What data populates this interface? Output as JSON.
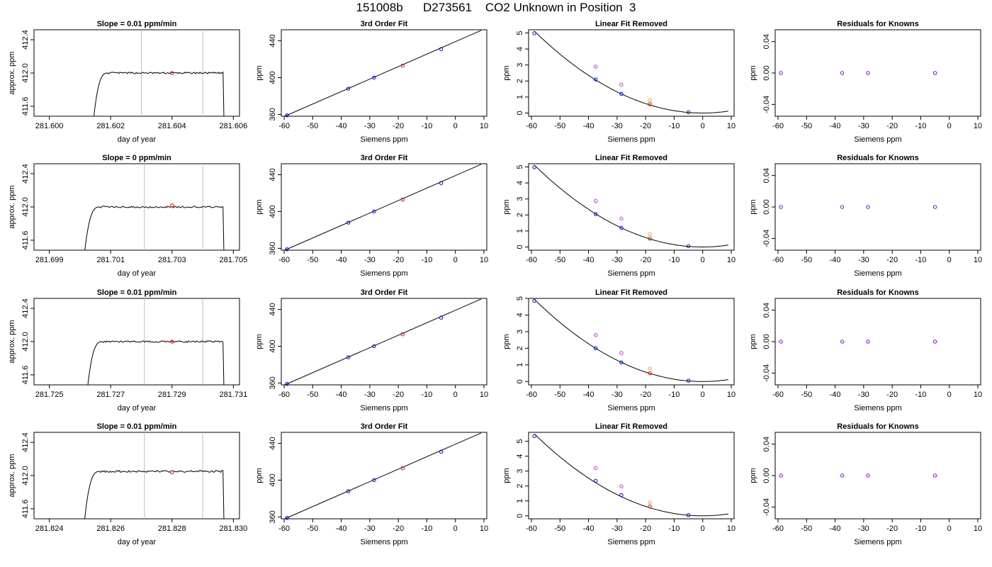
{
  "page": {
    "title": "151008b      D273561    CO2 Unknown in Position  3"
  },
  "colors": {
    "axis": "#000000",
    "vline": "#bebebe",
    "known": "#0000ff",
    "unknown": "#ff0000",
    "orig_known": "#cc33ff",
    "orig_unknown": "#ffa500",
    "resid": "#8000ff"
  },
  "chart_data": [
    {
      "type": "line",
      "row": 0,
      "col": 0,
      "title": "Slope =  0.01  ppm/min",
      "xlabel": "day of year",
      "ylabel": "approx. ppm",
      "xlim": [
        281.5995,
        281.6062
      ],
      "ylim": [
        411.48,
        412.52
      ],
      "xticks": [
        281.6,
        281.602,
        281.604,
        281.606
      ],
      "xtick_labels": [
        "281.600",
        "281.602",
        "281.604",
        "281.606"
      ],
      "yticks": [
        411.6,
        412.0,
        412.4
      ],
      "ytick_labels": [
        "411.6",
        "412.0",
        "412.4"
      ],
      "vlines": [
        281.603,
        281.605
      ],
      "trace": {
        "start": 281.6014,
        "end": 281.6057,
        "level": 412.0,
        "noise": 0.01
      },
      "points": [
        {
          "x": 281.604,
          "y": 412.0,
          "color": "unknown"
        }
      ]
    },
    {
      "type": "scatter",
      "row": 0,
      "col": 1,
      "title": "3rd Order Fit",
      "xlabel": "Siemens ppm",
      "ylabel": "ppm",
      "xlim": [
        -61,
        11
      ],
      "ylim": [
        358,
        452
      ],
      "xticks": [
        -60,
        -50,
        -40,
        -30,
        -20,
        -10,
        0,
        10
      ],
      "xtick_labels": [
        "-60",
        "-50",
        "-40",
        "-30",
        "-20",
        "-10",
        "0",
        "10"
      ],
      "yticks": [
        360,
        400,
        440
      ],
      "ytick_labels": [
        "360",
        "400",
        "440"
      ],
      "line": [
        [
          -60,
          357.7
        ],
        [
          9,
          451.3
        ]
      ],
      "points": [
        {
          "x": -59,
          "y": 359,
          "color": "known"
        },
        {
          "x": -37.5,
          "y": 388,
          "color": "known"
        },
        {
          "x": -28.5,
          "y": 400,
          "color": "known"
        },
        {
          "x": -18.5,
          "y": 413,
          "color": "unknown"
        },
        {
          "x": -5,
          "y": 431,
          "color": "known"
        }
      ]
    },
    {
      "type": "scatter",
      "row": 0,
      "col": 2,
      "title": "Linear Fit Removed",
      "xlabel": "Siemens ppm",
      "ylabel": "ppm",
      "xlim": [
        -61,
        11
      ],
      "ylim": [
        -0.2,
        5.2
      ],
      "xticks": [
        -60,
        -50,
        -40,
        -30,
        -20,
        -10,
        0,
        10
      ],
      "xtick_labels": [
        "-60",
        "-50",
        "-40",
        "-30",
        "-20",
        "-10",
        "0",
        "10"
      ],
      "yticks": [
        0,
        1,
        2,
        3,
        4,
        5
      ],
      "ytick_labels": [
        "0",
        "1",
        "2",
        "3",
        "4",
        "5"
      ],
      "curve": {
        "a": 0.00147,
        "b": 0,
        "c": 0.0,
        "x0": -59,
        "x1": 9
      },
      "points": [
        {
          "x": -59,
          "y": 4.98,
          "color": "known"
        },
        {
          "x": -37.5,
          "y": 2.1,
          "color": "known"
        },
        {
          "x": -28.5,
          "y": 1.2,
          "color": "known"
        },
        {
          "x": -18.5,
          "y": 0.55,
          "color": "unknown"
        },
        {
          "x": -5,
          "y": 0.05,
          "color": "known"
        },
        {
          "x": -37.5,
          "y": 2.9,
          "color": "orig_known"
        },
        {
          "x": -28.5,
          "y": 1.78,
          "color": "orig_known"
        },
        {
          "x": -18.5,
          "y": 0.8,
          "color": "orig_unknown"
        }
      ]
    },
    {
      "type": "scatter",
      "row": 0,
      "col": 3,
      "title": "Residuals for Knowns",
      "xlabel": "Siemens ppm",
      "ylabel": "ppm",
      "xlim": [
        -61,
        11
      ],
      "ylim": [
        -0.055,
        0.055
      ],
      "xticks": [
        -60,
        -50,
        -40,
        -30,
        -20,
        -10,
        0,
        10
      ],
      "xtick_labels": [
        "-60",
        "-50",
        "-40",
        "-30",
        "-20",
        "-10",
        "0",
        "10"
      ],
      "yticks": [
        -0.04,
        0.0,
        0.04
      ],
      "ytick_labels": [
        "-0.04",
        "0.00",
        "0.04"
      ],
      "points": [
        {
          "x": -59,
          "y": 0,
          "color": "resid"
        },
        {
          "x": -37.5,
          "y": 0,
          "color": "resid"
        },
        {
          "x": -28.5,
          "y": 0,
          "color": "resid"
        },
        {
          "x": -5,
          "y": 0,
          "color": "resid"
        }
      ]
    },
    {
      "type": "line",
      "row": 1,
      "col": 0,
      "title": "Slope =  0  ppm/min",
      "xlabel": "day of year",
      "ylabel": "approx. ppm",
      "xlim": [
        281.6985,
        281.7052
      ],
      "ylim": [
        411.48,
        412.52
      ],
      "xticks": [
        281.699,
        281.701,
        281.703,
        281.705
      ],
      "xtick_labels": [
        "281.699",
        "281.701",
        "281.703",
        "281.705"
      ],
      "yticks": [
        411.6,
        412.0,
        412.4
      ],
      "ytick_labels": [
        "411.6",
        "412.0",
        "412.4"
      ],
      "vlines": [
        281.7021,
        281.704
      ],
      "trace": {
        "start": 281.7001,
        "end": 281.7047,
        "level": 412.0,
        "noise": 0.01
      },
      "points": [
        {
          "x": 281.703,
          "y": 412.02,
          "color": "unknown"
        }
      ]
    },
    {
      "type": "scatter",
      "row": 1,
      "col": 1,
      "title": "3rd Order Fit",
      "xlabel": "Siemens ppm",
      "ylabel": "ppm",
      "xlim": [
        -61,
        11
      ],
      "ylim": [
        358,
        452
      ],
      "xticks": [
        -60,
        -50,
        -40,
        -30,
        -20,
        -10,
        0,
        10
      ],
      "xtick_labels": [
        "-60",
        "-50",
        "-40",
        "-30",
        "-20",
        "-10",
        "0",
        "10"
      ],
      "yticks": [
        360,
        400,
        440
      ],
      "ytick_labels": [
        "360",
        "400",
        "440"
      ],
      "line": [
        [
          -60,
          357.7
        ],
        [
          9,
          451.3
        ]
      ],
      "points": [
        {
          "x": -59,
          "y": 359,
          "color": "known"
        },
        {
          "x": -37.5,
          "y": 388,
          "color": "known"
        },
        {
          "x": -28.5,
          "y": 400,
          "color": "known"
        },
        {
          "x": -18.5,
          "y": 413,
          "color": "unknown"
        },
        {
          "x": -5,
          "y": 431,
          "color": "known"
        }
      ]
    },
    {
      "type": "scatter",
      "row": 1,
      "col": 2,
      "title": "Linear Fit Removed",
      "xlabel": "Siemens ppm",
      "ylabel": "ppm",
      "xlim": [
        -61,
        11
      ],
      "ylim": [
        -0.2,
        5.2
      ],
      "xticks": [
        -60,
        -50,
        -40,
        -30,
        -20,
        -10,
        0,
        10
      ],
      "xtick_labels": [
        "-60",
        "-50",
        "-40",
        "-30",
        "-20",
        "-10",
        "0",
        "10"
      ],
      "yticks": [
        0,
        1,
        2,
        3,
        4,
        5
      ],
      "ytick_labels": [
        "0",
        "1",
        "2",
        "3",
        "4",
        "5"
      ],
      "curve": {
        "a": 0.00147,
        "b": 0,
        "c": 0.0,
        "x0": -59,
        "x1": 9
      },
      "points": [
        {
          "x": -59,
          "y": 4.98,
          "color": "known"
        },
        {
          "x": -37.5,
          "y": 2.05,
          "color": "known"
        },
        {
          "x": -28.5,
          "y": 1.2,
          "color": "known"
        },
        {
          "x": -18.5,
          "y": 0.52,
          "color": "unknown"
        },
        {
          "x": -5,
          "y": 0.05,
          "color": "known"
        },
        {
          "x": -37.5,
          "y": 2.88,
          "color": "orig_known"
        },
        {
          "x": -28.5,
          "y": 1.78,
          "color": "orig_known"
        },
        {
          "x": -18.5,
          "y": 0.8,
          "color": "orig_unknown"
        }
      ]
    },
    {
      "type": "scatter",
      "row": 1,
      "col": 3,
      "title": "Residuals for Knowns",
      "xlabel": "Siemens ppm",
      "ylabel": "ppm",
      "xlim": [
        -61,
        11
      ],
      "ylim": [
        -0.055,
        0.055
      ],
      "xticks": [
        -60,
        -50,
        -40,
        -30,
        -20,
        -10,
        0,
        10
      ],
      "xtick_labels": [
        "-60",
        "-50",
        "-40",
        "-30",
        "-20",
        "-10",
        "0",
        "10"
      ],
      "yticks": [
        -0.04,
        0.0,
        0.04
      ],
      "ytick_labels": [
        "-0.04",
        "0.00",
        "0.04"
      ],
      "points": [
        {
          "x": -59,
          "y": 0,
          "color": "resid"
        },
        {
          "x": -37.5,
          "y": 0,
          "color": "resid"
        },
        {
          "x": -28.5,
          "y": 0,
          "color": "resid"
        },
        {
          "x": -5,
          "y": 0,
          "color": "resid"
        }
      ]
    },
    {
      "type": "line",
      "row": 2,
      "col": 0,
      "title": "Slope =  0.01  ppm/min",
      "xlabel": "day of year",
      "ylabel": "approx. ppm",
      "xlim": [
        281.7245,
        281.7312
      ],
      "ylim": [
        411.48,
        412.52
      ],
      "xticks": [
        281.725,
        281.727,
        281.729,
        281.731
      ],
      "xtick_labels": [
        "281.725",
        "281.727",
        "281.729",
        "281.731"
      ],
      "yticks": [
        411.6,
        412.0,
        412.4
      ],
      "ytick_labels": [
        "411.6",
        "412.0",
        "412.4"
      ],
      "vlines": [
        281.7281,
        281.73
      ],
      "trace": {
        "start": 281.7262,
        "end": 281.7307,
        "level": 412.0,
        "noise": 0.01
      },
      "points": [
        {
          "x": 281.729,
          "y": 412.0,
          "color": "unknown"
        }
      ]
    },
    {
      "type": "scatter",
      "row": 2,
      "col": 1,
      "title": "3rd Order Fit",
      "xlabel": "Siemens ppm",
      "ylabel": "ppm",
      "xlim": [
        -61,
        11
      ],
      "ylim": [
        358,
        452
      ],
      "xticks": [
        -60,
        -50,
        -40,
        -30,
        -20,
        -10,
        0,
        10
      ],
      "xtick_labels": [
        "-60",
        "-50",
        "-40",
        "-30",
        "-20",
        "-10",
        "0",
        "10"
      ],
      "yticks": [
        360,
        400,
        440
      ],
      "ytick_labels": [
        "360",
        "400",
        "440"
      ],
      "line": [
        [
          -60,
          357.7
        ],
        [
          9,
          451.3
        ]
      ],
      "points": [
        {
          "x": -59,
          "y": 359,
          "color": "known"
        },
        {
          "x": -37.5,
          "y": 388,
          "color": "known"
        },
        {
          "x": -28.5,
          "y": 400,
          "color": "known"
        },
        {
          "x": -18.5,
          "y": 413,
          "color": "unknown"
        },
        {
          "x": -5,
          "y": 431,
          "color": "known"
        }
      ]
    },
    {
      "type": "scatter",
      "row": 2,
      "col": 2,
      "title": "Linear Fit Removed",
      "xlabel": "Siemens ppm",
      "ylabel": "ppm",
      "xlim": [
        -61,
        11
      ],
      "ylim": [
        -0.2,
        5.0
      ],
      "xticks": [
        -60,
        -50,
        -40,
        -30,
        -20,
        -10,
        0,
        10
      ],
      "xtick_labels": [
        "-60",
        "-50",
        "-40",
        "-30",
        "-20",
        "-10",
        "0",
        "10"
      ],
      "yticks": [
        0,
        1,
        2,
        3,
        4,
        5
      ],
      "ytick_labels": [
        "0",
        "1",
        "2",
        "3",
        "4",
        "5"
      ],
      "curve": {
        "a": 0.00142,
        "b": 0,
        "c": 0.0,
        "x0": -59,
        "x1": 9
      },
      "points": [
        {
          "x": -59,
          "y": 4.85,
          "color": "known"
        },
        {
          "x": -37.5,
          "y": 2.0,
          "color": "known"
        },
        {
          "x": -28.5,
          "y": 1.15,
          "color": "known"
        },
        {
          "x": -18.5,
          "y": 0.5,
          "color": "unknown"
        },
        {
          "x": -5,
          "y": 0.05,
          "color": "known"
        },
        {
          "x": -37.5,
          "y": 2.8,
          "color": "orig_known"
        },
        {
          "x": -28.5,
          "y": 1.72,
          "color": "orig_known"
        },
        {
          "x": -18.5,
          "y": 0.78,
          "color": "orig_unknown"
        }
      ]
    },
    {
      "type": "scatter",
      "row": 2,
      "col": 3,
      "title": "Residuals for Knowns",
      "xlabel": "Siemens ppm",
      "ylabel": "ppm",
      "xlim": [
        -61,
        11
      ],
      "ylim": [
        -0.055,
        0.055
      ],
      "xticks": [
        -60,
        -50,
        -40,
        -30,
        -20,
        -10,
        0,
        10
      ],
      "xtick_labels": [
        "-60",
        "-50",
        "-40",
        "-30",
        "-20",
        "-10",
        "0",
        "10"
      ],
      "yticks": [
        -0.04,
        0.0,
        0.04
      ],
      "ytick_labels": [
        "-0.04",
        "0.00",
        "0.04"
      ],
      "points": [
        {
          "x": -59,
          "y": 0,
          "color": "resid"
        },
        {
          "x": -37.5,
          "y": 0,
          "color": "resid"
        },
        {
          "x": -28.5,
          "y": 0,
          "color": "resid"
        },
        {
          "x": -5,
          "y": 0,
          "color": "resid"
        }
      ]
    },
    {
      "type": "line",
      "row": 3,
      "col": 0,
      "title": "Slope =  0.01  ppm/min",
      "xlabel": "day of year",
      "ylabel": "approx. ppm",
      "xlim": [
        281.8235,
        281.8302
      ],
      "ylim": [
        411.48,
        412.52
      ],
      "xticks": [
        281.824,
        281.826,
        281.828,
        281.83
      ],
      "xtick_labels": [
        "281.824",
        "281.826",
        "281.828",
        "281.830"
      ],
      "yticks": [
        411.6,
        412.0,
        412.4
      ],
      "ytick_labels": [
        "411.6",
        "412.0",
        "412.4"
      ],
      "vlines": [
        281.8271,
        281.829
      ],
      "trace": {
        "start": 281.8251,
        "end": 281.8297,
        "level": 412.05,
        "noise": 0.012
      },
      "points": [
        {
          "x": 281.828,
          "y": 412.04,
          "color": "unknown"
        }
      ]
    },
    {
      "type": "scatter",
      "row": 3,
      "col": 1,
      "title": "3rd Order Fit",
      "xlabel": "Siemens ppm",
      "ylabel": "ppm",
      "xlim": [
        -61,
        11
      ],
      "ylim": [
        358,
        452
      ],
      "xticks": [
        -60,
        -50,
        -40,
        -30,
        -20,
        -10,
        0,
        10
      ],
      "xtick_labels": [
        "-60",
        "-50",
        "-40",
        "-30",
        "-20",
        "-10",
        "0",
        "10"
      ],
      "yticks": [
        360,
        400,
        440
      ],
      "ytick_labels": [
        "360",
        "400",
        "440"
      ],
      "line": [
        [
          -60,
          357.7
        ],
        [
          9,
          451.3
        ]
      ],
      "points": [
        {
          "x": -59,
          "y": 359,
          "color": "known"
        },
        {
          "x": -37.5,
          "y": 388,
          "color": "known"
        },
        {
          "x": -28.5,
          "y": 400,
          "color": "known"
        },
        {
          "x": -18.5,
          "y": 413,
          "color": "unknown"
        },
        {
          "x": -5,
          "y": 431,
          "color": "known"
        }
      ]
    },
    {
      "type": "scatter",
      "row": 3,
      "col": 2,
      "title": "Linear Fit Removed",
      "xlabel": "Siemens ppm",
      "ylabel": "ppm",
      "xlim": [
        -61,
        11
      ],
      "ylim": [
        -0.2,
        5.6
      ],
      "xticks": [
        -60,
        -50,
        -40,
        -30,
        -20,
        -10,
        0,
        10
      ],
      "xtick_labels": [
        "-60",
        "-50",
        "-40",
        "-30",
        "-20",
        "-10",
        "0",
        "10"
      ],
      "yticks": [
        0,
        1,
        2,
        3,
        4,
        5
      ],
      "ytick_labels": [
        "0",
        "1",
        "2",
        "3",
        "4",
        "5"
      ],
      "curve": {
        "a": 0.00158,
        "b": 0,
        "c": 0.0,
        "x0": -59,
        "x1": 9
      },
      "points": [
        {
          "x": -59,
          "y": 5.35,
          "color": "known"
        },
        {
          "x": -37.5,
          "y": 2.35,
          "color": "known"
        },
        {
          "x": -28.5,
          "y": 1.4,
          "color": "known"
        },
        {
          "x": -18.5,
          "y": 0.62,
          "color": "unknown"
        },
        {
          "x": -5,
          "y": 0.05,
          "color": "known"
        },
        {
          "x": -37.5,
          "y": 3.2,
          "color": "orig_known"
        },
        {
          "x": -28.5,
          "y": 1.98,
          "color": "orig_known"
        },
        {
          "x": -18.5,
          "y": 0.9,
          "color": "orig_unknown"
        }
      ]
    },
    {
      "type": "scatter",
      "row": 3,
      "col": 3,
      "title": "Residuals for Knowns",
      "xlabel": "Siemens ppm",
      "ylabel": "ppm",
      "xlim": [
        -61,
        11
      ],
      "ylim": [
        -0.055,
        0.055
      ],
      "xticks": [
        -60,
        -50,
        -40,
        -30,
        -20,
        -10,
        0,
        10
      ],
      "xtick_labels": [
        "-60",
        "-50",
        "-40",
        "-30",
        "-20",
        "-10",
        "0",
        "10"
      ],
      "yticks": [
        -0.04,
        0.0,
        0.04
      ],
      "ytick_labels": [
        "-0.04",
        "0.00",
        "0.04"
      ],
      "points": [
        {
          "x": -59,
          "y": 0,
          "color": "resid"
        },
        {
          "x": -37.5,
          "y": 0,
          "color": "resid"
        },
        {
          "x": -28.5,
          "y": 0,
          "color": "resid"
        },
        {
          "x": -5,
          "y": 0,
          "color": "resid"
        }
      ]
    }
  ]
}
